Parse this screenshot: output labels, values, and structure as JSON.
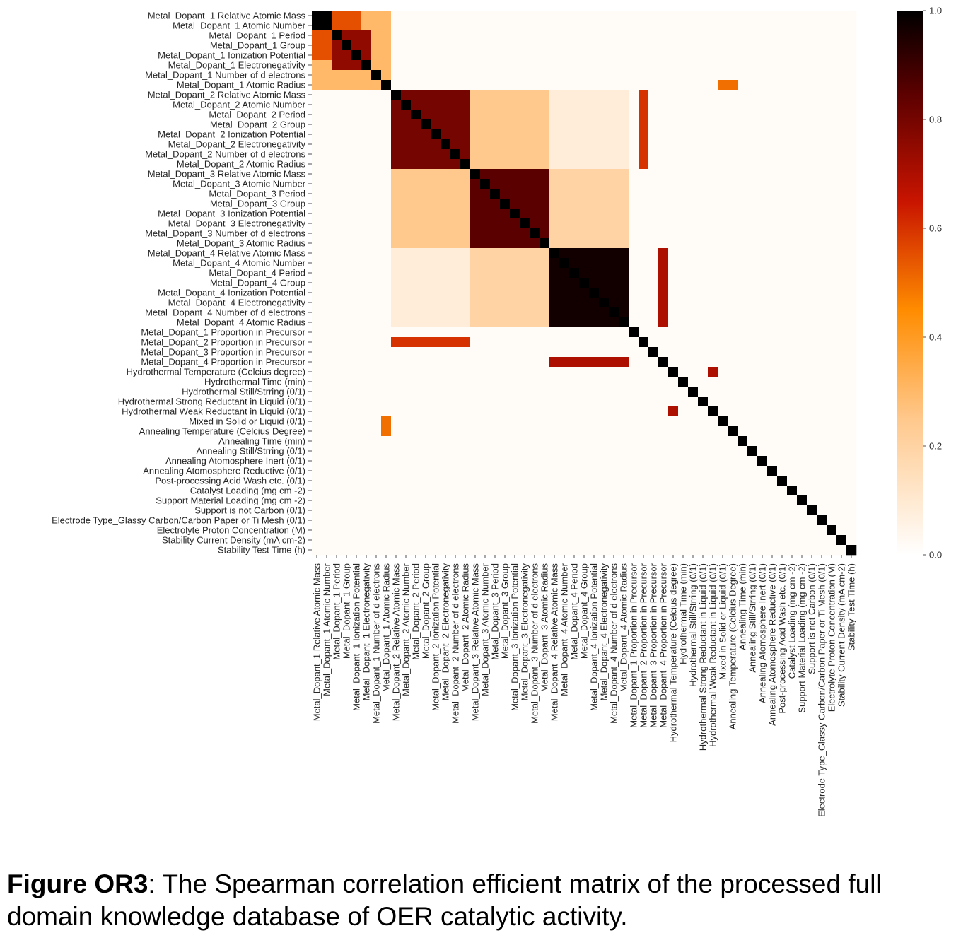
{
  "caption": {
    "label": "Figure OR3",
    "text": ": The Spearman correlation efficient matrix of the processed full domain knowledge database of OER catalytic activity."
  },
  "chart_data": {
    "type": "heatmap",
    "title": "",
    "colormap": "gist_heat_r",
    "colors": {
      "low": "#ffffff",
      "mid_low": "#ff8c00",
      "mid": "#c00000",
      "high": "#000000"
    },
    "labels": [
      "Metal_Dopant_1 Relative Atomic Mass",
      "Metal_Dopant_1 Atomic Number",
      "Metal_Dopant_1 Period",
      "Metal_Dopant_1 Group",
      "Metal_Dopant_1 Ionization Potential",
      "Metal_Dopant_1 Electronegativity",
      "Metal_Dopant_1 Number of d electrons",
      "Metal_Dopant_1 Atomic Radius",
      "Metal_Dopant_2 Relative Atomic Mass",
      "Metal_Dopant_2 Atomic Number",
      "Metal_Dopant_2 Period",
      "Metal_Dopant_2 Group",
      "Metal_Dopant_2 Ionization Potential",
      "Metal_Dopant_2 Electronegativity",
      "Metal_Dopant_2 Number of d electrons",
      "Metal_Dopant_2 Atomic Radius",
      "Metal_Dopant_3 Relative Atomic Mass",
      "Metal_Dopant_3 Atomic Number",
      "Metal_Dopant_3 Period",
      "Metal_Dopant_3 Group",
      "Metal_Dopant_3 Ionization Potential",
      "Metal_Dopant_3 Electronegativity",
      "Metal_Dopant_3 Number of d electrons",
      "Metal_Dopant_3 Atomic Radius",
      "Metal_Dopant_4 Relative Atomic Mass",
      "Metal_Dopant_4 Atomic Number",
      "Metal_Dopant_4 Period",
      "Metal_Dopant_4 Group",
      "Metal_Dopant_4 Ionization Potential",
      "Metal_Dopant_4 Electronegativity",
      "Metal_Dopant_4 Number of d electrons",
      "Metal_Dopant_4 Atomic Radius",
      "Metal_Dopant_1 Proportion in Precursor",
      "Metal_Dopant_2 Proportion in Precursor",
      "Metal_Dopant_3 Proportion in Precursor",
      "Metal_Dopant_4 Proportion in Precursor",
      "Hydrothermal Temperature (Celcius degree)",
      "Hydrothermal Time (min)",
      "Hydrothermal Still/Strring (0/1)",
      "Hydrothermal Strong Reductant in Liquid (0/1)",
      "Hydrothermal Weak Reductant in Liquid (0/1)",
      "Mixed in Solid or Liquid (0/1)",
      "Annealing Temperature (Celcius Degree)",
      "Annealing Time (min)",
      "Annealing Still/Strring (0/1)",
      "Annealing Atomosphere Inert (0/1)",
      "Annealing Atomosphere Reductive (0/1)",
      "Post-processing Acid Wash etc. (0/1)",
      "Catalyst Loading (mg cm -2)",
      "Support Material Loading (mg cm -2)",
      "Support is not Carbon (0/1)",
      "Electrode Type_Glassy Carbon/Carbon Paper or Ti Mesh (0/1)",
      "Electrolyte Proton Concentration (M)",
      "Stability Current Density (mA cm-2)",
      "Stability Test Time (h)"
    ],
    "value_range": [
      0,
      1
    ],
    "colorbar_ticks": [
      "0.0",
      "0.2",
      "0.4",
      "0.6",
      "0.8",
      "1.0"
    ],
    "approx_values": {
      "note": "approximate |rho| read from color; unlisted pairs ~0.02",
      "block_pairs": [
        {
          "rows": [
            0,
            7
          ],
          "cols": [
            0,
            7
          ],
          "value": 0.3
        },
        {
          "rows": [
            0,
            1
          ],
          "cols": [
            0,
            1
          ],
          "value": 1.0
        },
        {
          "rows": [
            0,
            1
          ],
          "cols": [
            2,
            4
          ],
          "value": 0.55
        },
        {
          "rows": [
            2,
            5
          ],
          "cols": [
            2,
            5
          ],
          "value": 0.75
        },
        {
          "rows": [
            8,
            15
          ],
          "cols": [
            8,
            15
          ],
          "value": 0.8
        },
        {
          "rows": [
            8,
            15
          ],
          "cols": [
            16,
            23
          ],
          "value": 0.25
        },
        {
          "rows": [
            8,
            15
          ],
          "cols": [
            24,
            31
          ],
          "value": 0.08
        },
        {
          "rows": [
            16,
            23
          ],
          "cols": [
            16,
            23
          ],
          "value": 0.85
        },
        {
          "rows": [
            16,
            23
          ],
          "cols": [
            24,
            31
          ],
          "value": 0.2
        },
        {
          "rows": [
            24,
            31
          ],
          "cols": [
            24,
            31
          ],
          "value": 0.97
        },
        {
          "rows": [
            8,
            15
          ],
          "cols": [
            33,
            33
          ],
          "value": 0.6
        },
        {
          "rows": [
            24,
            31
          ],
          "cols": [
            35,
            35
          ],
          "value": 0.7
        },
        {
          "rows": [
            36,
            36
          ],
          "cols": [
            40,
            40
          ],
          "value": 0.7
        },
        {
          "rows": [
            7,
            7
          ],
          "cols": [
            41,
            42
          ],
          "value": 0.5
        }
      ],
      "diagonal": 1.0,
      "background": 0.02
    }
  }
}
